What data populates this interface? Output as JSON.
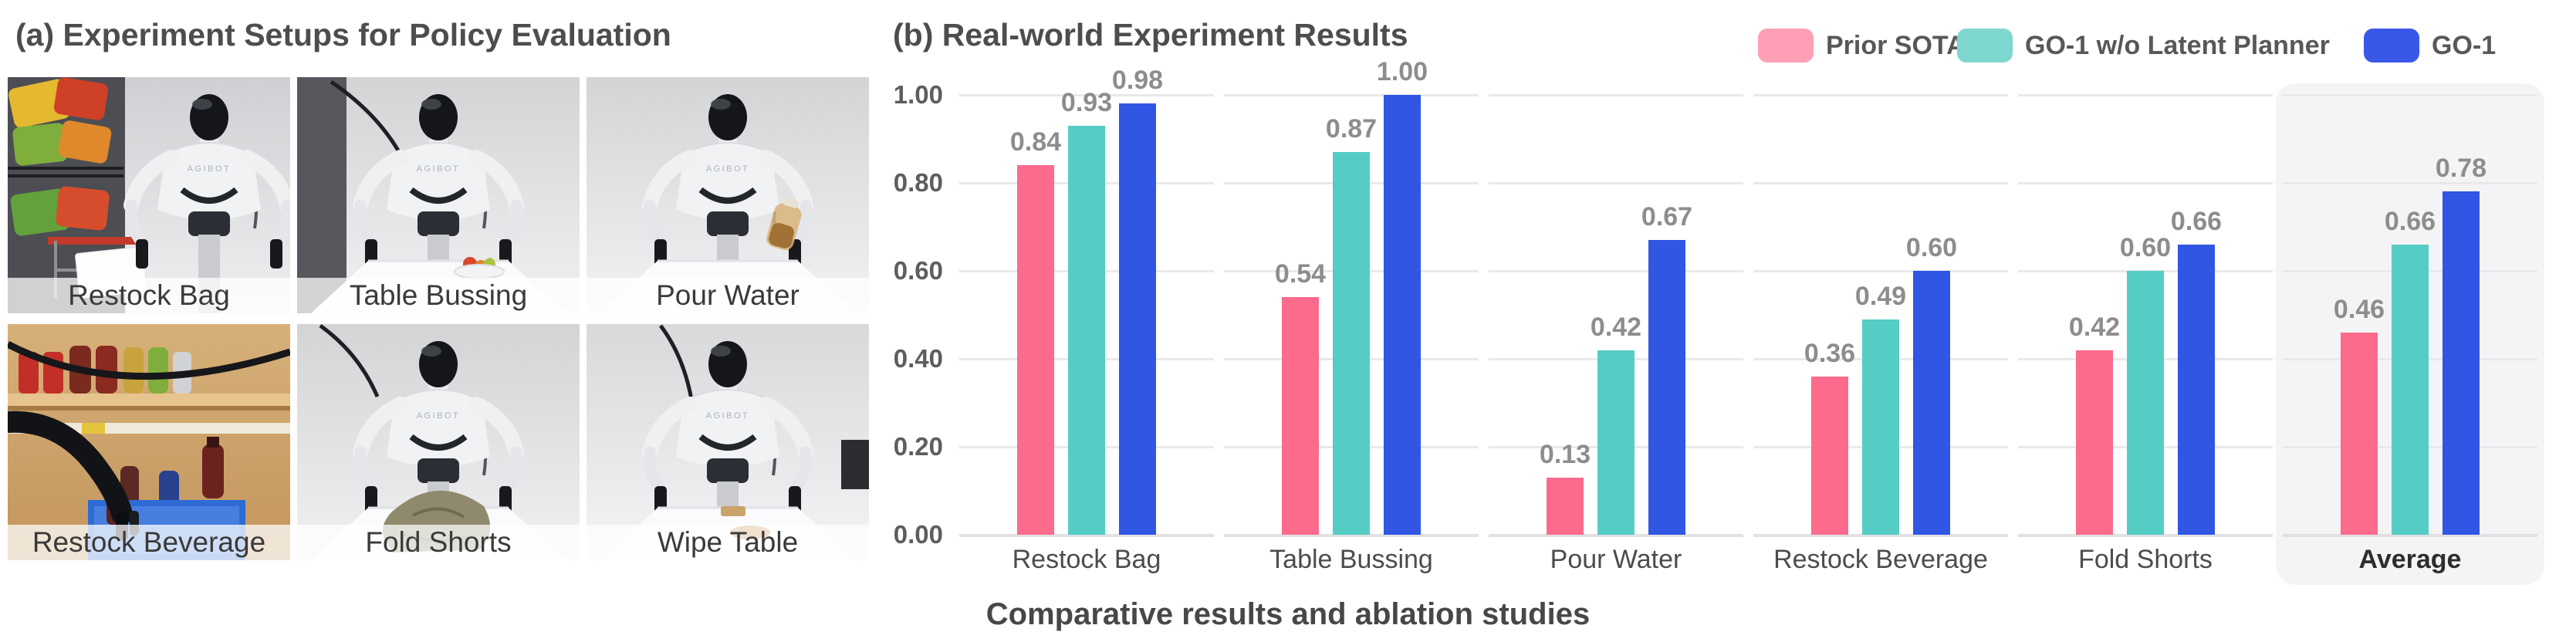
{
  "panel_a": {
    "title": "(a) Experiment Setups for Policy Evaluation",
    "robot_brand": "AGIBOT",
    "photos": [
      {
        "label": "Restock Bag"
      },
      {
        "label": "Table Bussing"
      },
      {
        "label": "Pour Water"
      },
      {
        "label": "Restock Beverage"
      },
      {
        "label": "Fold Shorts"
      },
      {
        "label": "Wipe Table"
      }
    ]
  },
  "panel_b": {
    "title": "(b) Real-world Experiment Results",
    "caption": "Comparative results and ablation studies",
    "legend": [
      {
        "label": "Prior SOTA",
        "swatch_color": "#FF9FB5",
        "bar_color": "#FC6A8C"
      },
      {
        "label": "GO-1 w/o Latent Planner",
        "swatch_color": "#7ED7CF",
        "bar_color": "#55CDC5"
      },
      {
        "label": "GO-1",
        "swatch_color": "#3A58E8",
        "bar_color": "#3156E3"
      }
    ]
  },
  "chart_data": {
    "type": "bar",
    "title": "(b) Real-world Experiment Results",
    "categories": [
      "Restock Bag",
      "Table Bussing",
      "Pour Water",
      "Restock Beverage",
      "Fold Shorts",
      "Average"
    ],
    "series": [
      {
        "name": "Prior SOTA",
        "color": "#FC6A8C",
        "values": [
          0.84,
          0.54,
          0.13,
          0.36,
          0.42,
          0.46
        ]
      },
      {
        "name": "GO-1 w/o Latent Planner",
        "color": "#55CDC5",
        "values": [
          0.93,
          0.87,
          0.42,
          0.49,
          0.6,
          0.66
        ]
      },
      {
        "name": "GO-1",
        "color": "#3156E3",
        "values": [
          0.98,
          1.0,
          0.67,
          0.6,
          0.66,
          0.78
        ]
      }
    ],
    "ylim": [
      0.0,
      1.0
    ],
    "yticks": [
      "1.00",
      "0.80",
      "0.60",
      "0.40",
      "0.20",
      "0.00"
    ],
    "grid": true,
    "legend_position": "top-right",
    "highlight_category": "Average",
    "value_label_format": "0.00",
    "xlabel": "",
    "ylabel": ""
  }
}
